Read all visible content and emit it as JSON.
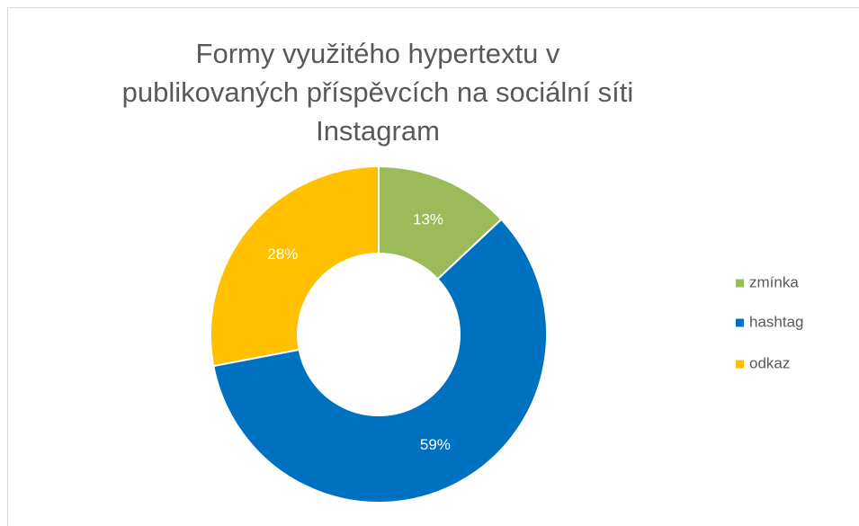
{
  "chart_data": {
    "type": "donut",
    "title": "Formy využitého hypertextu v publikovaných příspěvcích na sociální síti Instagram",
    "categories": [
      "zmínka",
      "hashtag",
      "odkaz"
    ],
    "values": [
      13,
      59,
      28
    ],
    "value_labels": [
      "13%",
      "59%",
      "28%"
    ],
    "colors": [
      "#9bbb59",
      "#0070c0",
      "#ffc000"
    ],
    "legend": "right"
  }
}
